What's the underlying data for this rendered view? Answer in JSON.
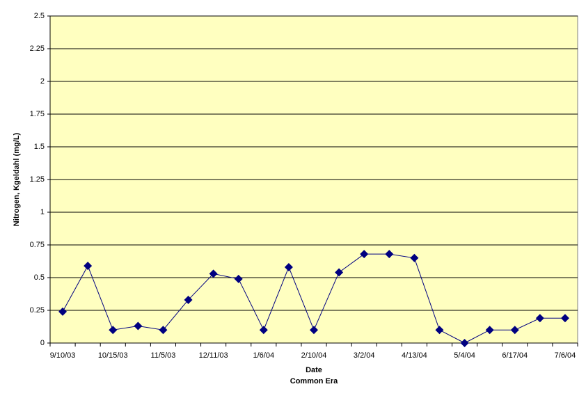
{
  "chart_data": {
    "type": "line",
    "ylabel": "Nitrogen, Kgeldahl (mg/L)",
    "xlabel": [
      "Date",
      "Common Era"
    ],
    "categories": [
      "9/10/03",
      null,
      "10/15/03",
      null,
      "11/5/03",
      null,
      "12/11/03",
      null,
      "1/6/04",
      null,
      "2/10/04",
      null,
      "3/2/04",
      null,
      "4/13/04",
      null,
      "5/4/04",
      null,
      "6/17/04",
      null,
      "7/6/04"
    ],
    "series": [
      {
        "color": "#000080",
        "values": [
          0.24,
          0.59,
          0.1,
          0.13,
          0.1,
          0.33,
          0.53,
          0.49,
          0.1,
          0.58,
          0.1,
          0.54,
          0.68,
          0.68,
          0.65,
          0.1,
          0,
          0.1,
          0.1,
          0.19,
          0.19
        ]
      }
    ],
    "ylim": [
      0,
      2.5
    ],
    "yticks": [
      0,
      0.25,
      0.5,
      0.75,
      1,
      1.25,
      1.5,
      1.75,
      2,
      2.25,
      2.5
    ],
    "grid": true,
    "background": "#ffffc0"
  }
}
